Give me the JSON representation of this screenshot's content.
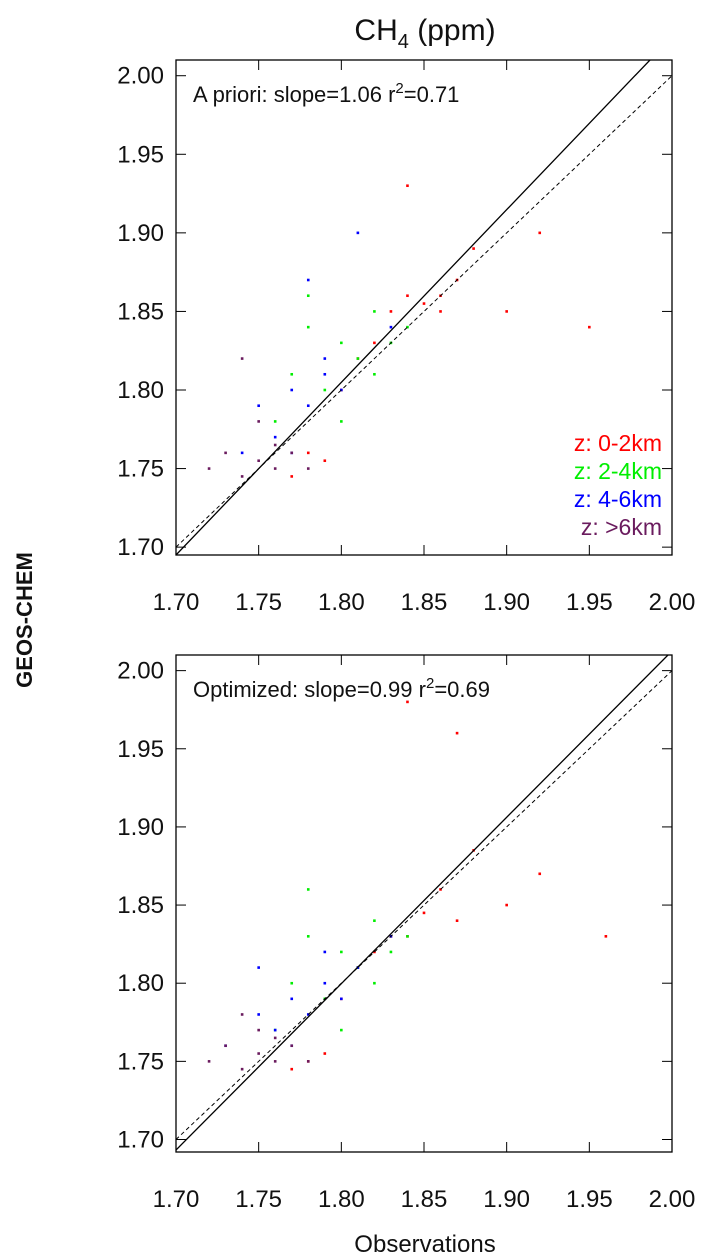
{
  "chart_data": [
    {
      "type": "scatter",
      "title": {
        "text": "CH",
        "sub": "4",
        "rest": " (ppm)"
      },
      "ylabel": "GEOS-CHEM",
      "annotation": {
        "text": "A priori: slope=1.06  r",
        "sup": "2",
        "rest": "=0.71"
      },
      "xlim": [
        1.7,
        2.0
      ],
      "ylim": [
        1.695,
        2.01
      ],
      "xticks": [
        {
          "value": 1.7,
          "label": "1.70"
        },
        {
          "value": 1.75,
          "label": "1.75"
        },
        {
          "value": 1.8,
          "label": "1.80"
        },
        {
          "value": 1.85,
          "label": "1.85"
        },
        {
          "value": 1.9,
          "label": "1.90"
        },
        {
          "value": 1.95,
          "label": "1.95"
        },
        {
          "value": 2.0,
          "label": "2.00"
        }
      ],
      "yticks": [
        {
          "value": 1.7,
          "label": "1.70"
        },
        {
          "value": 1.75,
          "label": "1.75"
        },
        {
          "value": 1.8,
          "label": "1.80"
        },
        {
          "value": 1.85,
          "label": "1.85"
        },
        {
          "value": 1.9,
          "label": "1.90"
        },
        {
          "value": 1.95,
          "label": "1.95"
        },
        {
          "value": 2.0,
          "label": "2.00"
        }
      ],
      "legend": "lower right",
      "series": [
        {
          "name": "z: 0-2km",
          "color": "#ff0000",
          "x": [
            1.77,
            1.79,
            1.8,
            1.81,
            1.82,
            1.83,
            1.84,
            1.85,
            1.86,
            1.87,
            1.88,
            1.9,
            1.92,
            1.95,
            1.84,
            1.86,
            1.78
          ],
          "values": [
            1.745,
            1.755,
            1.8,
            1.82,
            1.83,
            1.85,
            1.86,
            1.855,
            1.86,
            1.87,
            1.89,
            1.85,
            1.9,
            1.84,
            1.93,
            1.85,
            1.76
          ]
        },
        {
          "name": "z: 2-4km",
          "color": "#00ee00",
          "x": [
            1.76,
            1.77,
            1.78,
            1.79,
            1.8,
            1.81,
            1.82,
            1.83,
            1.84,
            1.78,
            1.8,
            1.82
          ],
          "values": [
            1.78,
            1.81,
            1.84,
            1.8,
            1.83,
            1.82,
            1.85,
            1.83,
            1.84,
            1.86,
            1.78,
            1.81
          ]
        },
        {
          "name": "z: 4-6km",
          "color": "#0000ff",
          "x": [
            1.74,
            1.75,
            1.76,
            1.77,
            1.78,
            1.79,
            1.8,
            1.81,
            1.83,
            1.77,
            1.79,
            1.78
          ],
          "values": [
            1.76,
            1.79,
            1.77,
            1.8,
            1.79,
            1.81,
            1.8,
            1.9,
            1.84,
            1.76,
            1.82,
            1.87
          ]
        },
        {
          "name": "z: >6km",
          "color": "#6a1b5e",
          "x": [
            1.72,
            1.73,
            1.74,
            1.75,
            1.76,
            1.75,
            1.77,
            1.74,
            1.76,
            1.78
          ],
          "values": [
            1.75,
            1.76,
            1.745,
            1.755,
            1.75,
            1.78,
            1.76,
            1.82,
            1.765,
            1.75
          ]
        }
      ]
    },
    {
      "type": "scatter",
      "xlabel": "Observations",
      "annotation": {
        "text": "Optimized: slope=0.99  r",
        "sup": "2",
        "rest": "=0.69"
      },
      "xlim": [
        1.7,
        2.0
      ],
      "ylim": [
        1.692,
        2.01
      ],
      "xticks": [
        {
          "value": 1.7,
          "label": "1.70"
        },
        {
          "value": 1.75,
          "label": "1.75"
        },
        {
          "value": 1.8,
          "label": "1.80"
        },
        {
          "value": 1.85,
          "label": "1.85"
        },
        {
          "value": 1.9,
          "label": "1.90"
        },
        {
          "value": 1.95,
          "label": "1.95"
        },
        {
          "value": 2.0,
          "label": "2.00"
        }
      ],
      "yticks": [
        {
          "value": 1.7,
          "label": "1.70"
        },
        {
          "value": 1.75,
          "label": "1.75"
        },
        {
          "value": 1.8,
          "label": "1.80"
        },
        {
          "value": 1.85,
          "label": "1.85"
        },
        {
          "value": 1.9,
          "label": "1.90"
        },
        {
          "value": 1.95,
          "label": "1.95"
        },
        {
          "value": 2.0,
          "label": "2.00"
        }
      ],
      "series": [
        {
          "color": "#ff0000",
          "x": [
            1.77,
            1.79,
            1.8,
            1.81,
            1.82,
            1.83,
            1.84,
            1.85,
            1.86,
            1.87,
            1.88,
            1.9,
            1.92,
            1.96,
            1.87,
            1.84,
            1.78
          ],
          "values": [
            1.745,
            1.755,
            1.79,
            1.81,
            1.82,
            1.83,
            1.83,
            1.845,
            1.86,
            1.84,
            1.885,
            1.85,
            1.87,
            1.83,
            1.96,
            1.98,
            1.75
          ]
        },
        {
          "color": "#00ee00",
          "x": [
            1.76,
            1.77,
            1.78,
            1.79,
            1.8,
            1.81,
            1.82,
            1.83,
            1.84,
            1.78,
            1.8,
            1.82
          ],
          "values": [
            1.77,
            1.8,
            1.83,
            1.79,
            1.82,
            1.81,
            1.84,
            1.82,
            1.83,
            1.86,
            1.77,
            1.8
          ]
        },
        {
          "color": "#0000ff",
          "x": [
            1.73,
            1.75,
            1.76,
            1.77,
            1.78,
            1.79,
            1.8,
            1.81,
            1.83,
            1.77,
            1.79,
            1.75
          ],
          "values": [
            1.76,
            1.78,
            1.77,
            1.79,
            1.78,
            1.8,
            1.79,
            1.81,
            1.83,
            1.76,
            1.82,
            1.81
          ]
        },
        {
          "color": "#6a1b5e",
          "x": [
            1.72,
            1.73,
            1.74,
            1.75,
            1.76,
            1.75,
            1.77,
            1.74,
            1.76,
            1.78
          ],
          "values": [
            1.75,
            1.76,
            1.745,
            1.755,
            1.75,
            1.77,
            1.76,
            1.78,
            1.765,
            1.75
          ]
        }
      ]
    }
  ]
}
